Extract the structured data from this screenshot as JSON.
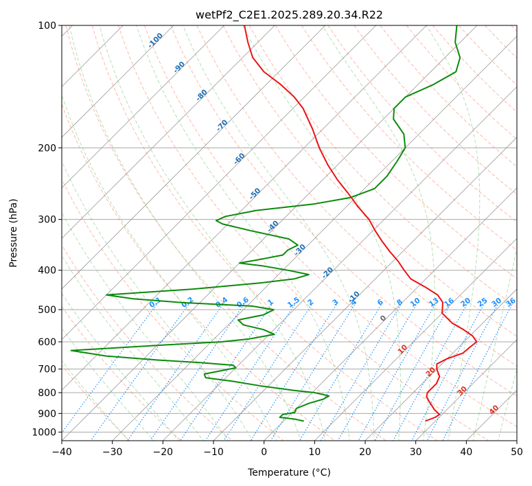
{
  "chart_data": {
    "type": "skew-t",
    "title": "wetPf2_C2E1.2025.289.20.34.R22",
    "xlabel": "Temperature (°C)",
    "ylabel": "Pressure (hPa)",
    "xlim": [
      -40,
      50
    ],
    "ylim": [
      1050,
      100
    ],
    "x_ticks": [
      -40,
      -30,
      -20,
      -10,
      0,
      10,
      20,
      30,
      40,
      50
    ],
    "x_tick_labels": [
      "−40",
      "−30",
      "−20",
      "−10",
      "0",
      "10",
      "20",
      "30",
      "40",
      "50"
    ],
    "y_ticks": [
      100,
      200,
      300,
      400,
      500,
      600,
      700,
      800,
      900,
      1000
    ],
    "y_tick_labels": [
      "100",
      "200",
      "300",
      "400",
      "500",
      "600",
      "700",
      "800",
      "900",
      "1000"
    ],
    "colors": {
      "temperature": "#ee1111",
      "dewpoint": "#0a8a0a",
      "dry_adiabat": "#fa8060",
      "moist_adiabat": "#6cc06c",
      "mixing_ratio": "#1e90ff",
      "isotherm": "#9a9a9a",
      "isobar": "#a8a8a8",
      "dry_label": "#e03020",
      "moist_label": "#1f6fb4",
      "zero_label": "#666666"
    },
    "dry_adiabat_labels": [
      {
        "text": "10",
        "temp": 10,
        "p": 632
      },
      {
        "text": "20",
        "temp": 20,
        "p": 718
      },
      {
        "text": "30",
        "temp": 30,
        "p": 800
      },
      {
        "text": "40",
        "temp": 40,
        "p": 890
      }
    ],
    "moist_adiabat_labels": [
      {
        "text": "-100",
        "temp": -100,
        "p": 110
      },
      {
        "text": "-90",
        "temp": -90,
        "p": 128
      },
      {
        "text": "-80",
        "temp": -80,
        "p": 150
      },
      {
        "text": "-70",
        "temp": -70,
        "p": 178
      },
      {
        "text": "-60",
        "temp": -60,
        "p": 215
      },
      {
        "text": "-50",
        "temp": -50,
        "p": 262
      },
      {
        "text": "-40",
        "temp": -40,
        "p": 315
      },
      {
        "text": "-30",
        "temp": -30,
        "p": 360
      },
      {
        "text": "-20",
        "temp": -20,
        "p": 410
      },
      {
        "text": "-10",
        "temp": -10,
        "p": 470
      },
      {
        "text": "0",
        "temp": 0,
        "p": 530
      }
    ],
    "mixing_ratio_labels": [
      "0.1",
      "0.2",
      "0.4",
      "0.6",
      "1",
      "1.5",
      "2",
      "3",
      "4",
      "6",
      "8",
      "10",
      "13",
      "16",
      "20",
      "25",
      "30",
      "36"
    ],
    "mixing_ratio_label_p": 485,
    "series": [
      {
        "name": "Temperature",
        "points": [
          {
            "p": 940,
            "t": 28
          },
          {
            "p": 920,
            "t": 29.2
          },
          {
            "p": 905,
            "t": 29.5
          },
          {
            "p": 880,
            "t": 27.5
          },
          {
            "p": 850,
            "t": 25.5
          },
          {
            "p": 820,
            "t": 23.5
          },
          {
            "p": 800,
            "t": 22.8
          },
          {
            "p": 760,
            "t": 22.8
          },
          {
            "p": 730,
            "t": 22
          },
          {
            "p": 700,
            "t": 20
          },
          {
            "p": 680,
            "t": 19
          },
          {
            "p": 660,
            "t": 20
          },
          {
            "p": 640,
            "t": 22
          },
          {
            "p": 620,
            "t": 22.2
          },
          {
            "p": 600,
            "t": 22.5
          },
          {
            "p": 580,
            "t": 20.5
          },
          {
            "p": 560,
            "t": 17.5
          },
          {
            "p": 540,
            "t": 14
          },
          {
            "p": 510,
            "t": 10
          },
          {
            "p": 480,
            "t": 8
          },
          {
            "p": 460,
            "t": 5.5
          },
          {
            "p": 440,
            "t": 1.5
          },
          {
            "p": 420,
            "t": -3
          },
          {
            "p": 400,
            "t": -6
          },
          {
            "p": 380,
            "t": -9
          },
          {
            "p": 360,
            "t": -12.5
          },
          {
            "p": 340,
            "t": -16
          },
          {
            "p": 320,
            "t": -19.5
          },
          {
            "p": 300,
            "t": -23
          },
          {
            "p": 280,
            "t": -27.5
          },
          {
            "p": 260,
            "t": -32
          },
          {
            "p": 240,
            "t": -37
          },
          {
            "p": 220,
            "t": -42
          },
          {
            "p": 200,
            "t": -47
          },
          {
            "p": 180,
            "t": -52
          },
          {
            "p": 160,
            "t": -58
          },
          {
            "p": 150,
            "t": -62
          },
          {
            "p": 140,
            "t": -67
          },
          {
            "p": 130,
            "t": -73
          },
          {
            "p": 120,
            "t": -78
          },
          {
            "p": 110,
            "t": -82
          },
          {
            "p": 100,
            "t": -86
          }
        ]
      },
      {
        "name": "Dewpoint",
        "points": [
          {
            "p": 940,
            "t": 4
          },
          {
            "p": 930,
            "t": 2
          },
          {
            "p": 920,
            "t": -1.5
          },
          {
            "p": 905,
            "t": -1.5
          },
          {
            "p": 895,
            "t": 0.5
          },
          {
            "p": 875,
            "t": 0
          },
          {
            "p": 850,
            "t": 1.5
          },
          {
            "p": 830,
            "t": 3.5
          },
          {
            "p": 815,
            "t": 4
          },
          {
            "p": 800,
            "t": 0.5
          },
          {
            "p": 790,
            "t": -4
          },
          {
            "p": 770,
            "t": -11.5
          },
          {
            "p": 750,
            "t": -18
          },
          {
            "p": 735,
            "t": -24
          },
          {
            "p": 720,
            "t": -25
          },
          {
            "p": 705,
            "t": -22
          },
          {
            "p": 695,
            "t": -20
          },
          {
            "p": 685,
            "t": -21
          },
          {
            "p": 675,
            "t": -28
          },
          {
            "p": 665,
            "t": -37
          },
          {
            "p": 650,
            "t": -48
          },
          {
            "p": 630,
            "t": -56
          },
          {
            "p": 610,
            "t": -38
          },
          {
            "p": 600,
            "t": -28
          },
          {
            "p": 590,
            "t": -23
          },
          {
            "p": 575,
            "t": -19
          },
          {
            "p": 560,
            "t": -22
          },
          {
            "p": 545,
            "t": -27
          },
          {
            "p": 530,
            "t": -29
          },
          {
            "p": 515,
            "t": -25
          },
          {
            "p": 500,
            "t": -24
          },
          {
            "p": 490,
            "t": -29
          },
          {
            "p": 480,
            "t": -44
          },
          {
            "p": 470,
            "t": -54
          },
          {
            "p": 460,
            "t": -60
          },
          {
            "p": 445,
            "t": -44
          },
          {
            "p": 430,
            "t": -32
          },
          {
            "p": 420,
            "t": -26
          },
          {
            "p": 410,
            "t": -24
          },
          {
            "p": 400,
            "t": -29
          },
          {
            "p": 390,
            "t": -35
          },
          {
            "p": 384,
            "t": -40
          },
          {
            "p": 377,
            "t": -37
          },
          {
            "p": 367,
            "t": -33
          },
          {
            "p": 357,
            "t": -33
          },
          {
            "p": 347,
            "t": -32
          },
          {
            "p": 335,
            "t": -35
          },
          {
            "p": 320,
            "t": -44
          },
          {
            "p": 308,
            "t": -51
          },
          {
            "p": 302,
            "t": -53
          },
          {
            "p": 295,
            "t": -52
          },
          {
            "p": 285,
            "t": -47
          },
          {
            "p": 275,
            "t": -37
          },
          {
            "p": 265,
            "t": -31
          },
          {
            "p": 252,
            "t": -28
          },
          {
            "p": 235,
            "t": -28
          },
          {
            "p": 215,
            "t": -29
          },
          {
            "p": 200,
            "t": -30
          },
          {
            "p": 185,
            "t": -33
          },
          {
            "p": 170,
            "t": -38
          },
          {
            "p": 160,
            "t": -40
          },
          {
            "p": 150,
            "t": -40
          },
          {
            "p": 140,
            "t": -37
          },
          {
            "p": 130,
            "t": -35
          },
          {
            "p": 120,
            "t": -37
          },
          {
            "p": 110,
            "t": -41
          },
          {
            "p": 100,
            "t": -44
          }
        ]
      }
    ]
  }
}
